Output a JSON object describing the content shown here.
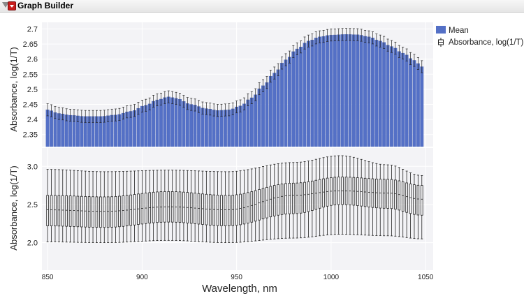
{
  "window": {
    "title": "Graph Builder"
  },
  "legend": {
    "items": [
      {
        "label": "Mean",
        "color": "#5470c6"
      },
      {
        "label": "Absorbance, log(1/T)",
        "symbol": "box-plot-icon"
      }
    ]
  },
  "colors": {
    "bar": "#5470c6",
    "bar_edge": "#3f5ab0",
    "whisker": "#222222",
    "panel_bg": "#f3f3f6",
    "grid": "#ffffff"
  },
  "chart_data": {
    "type": "bar",
    "xlabel": "Wavelength, nm",
    "x_ticks": [
      850,
      900,
      950,
      1000,
      1050
    ],
    "xlim": [
      847,
      1054
    ],
    "x_start": 850,
    "x_step": 2,
    "top_panel": {
      "ylabel": "Absorbance, log(1/T)",
      "ylim": [
        2.31,
        2.722
      ],
      "y_ticks": [
        2.35,
        2.4,
        2.45,
        2.5,
        2.55,
        2.6,
        2.65,
        2.7
      ],
      "series": [
        {
          "name": "Mean",
          "type": "bar"
        }
      ],
      "error_halfwidth": 0.02,
      "mean_anchors": [
        [
          850,
          2.432
        ],
        [
          856,
          2.42
        ],
        [
          862,
          2.414
        ],
        [
          870,
          2.41
        ],
        [
          878,
          2.41
        ],
        [
          886,
          2.415
        ],
        [
          894,
          2.427
        ],
        [
          902,
          2.447
        ],
        [
          908,
          2.465
        ],
        [
          914,
          2.475
        ],
        [
          918,
          2.47
        ],
        [
          926,
          2.45
        ],
        [
          934,
          2.436
        ],
        [
          940,
          2.43
        ],
        [
          946,
          2.432
        ],
        [
          952,
          2.445
        ],
        [
          958,
          2.472
        ],
        [
          964,
          2.512
        ],
        [
          970,
          2.554
        ],
        [
          976,
          2.598
        ],
        [
          982,
          2.634
        ],
        [
          988,
          2.66
        ],
        [
          994,
          2.674
        ],
        [
          1000,
          2.68
        ],
        [
          1008,
          2.682
        ],
        [
          1014,
          2.681
        ],
        [
          1020,
          2.674
        ],
        [
          1026,
          2.66
        ],
        [
          1032,
          2.642
        ],
        [
          1038,
          2.62
        ],
        [
          1044,
          2.596
        ],
        [
          1048,
          2.575
        ]
      ]
    },
    "bottom_panel": {
      "ylabel": "Absorbance, log(1/T)",
      "ylim": [
        1.64,
        3.24
      ],
      "y_ticks": [
        2.0,
        2.5,
        3.0
      ],
      "series": [
        {
          "name": "Absorbance, log(1/T)",
          "type": "box"
        }
      ],
      "box_anchors": [
        {
          "x": 850,
          "min": 2.01,
          "q1": 2.22,
          "median": 2.43,
          "q3": 2.62,
          "max": 2.96
        },
        {
          "x": 880,
          "min": 2.0,
          "q1": 2.2,
          "median": 2.41,
          "q3": 2.6,
          "max": 2.93
        },
        {
          "x": 914,
          "min": 2.03,
          "q1": 2.27,
          "median": 2.47,
          "q3": 2.67,
          "max": 2.95
        },
        {
          "x": 945,
          "min": 2.0,
          "q1": 2.22,
          "median": 2.43,
          "q3": 2.62,
          "max": 2.93
        },
        {
          "x": 980,
          "min": 2.06,
          "q1": 2.38,
          "median": 2.62,
          "q3": 2.78,
          "max": 3.05
        },
        {
          "x": 1005,
          "min": 2.11,
          "q1": 2.5,
          "median": 2.68,
          "q3": 2.86,
          "max": 3.14
        },
        {
          "x": 1030,
          "min": 2.09,
          "q1": 2.45,
          "median": 2.65,
          "q3": 2.83,
          "max": 3.02
        },
        {
          "x": 1048,
          "min": 2.05,
          "q1": 2.36,
          "median": 2.57,
          "q3": 2.75,
          "max": 2.88
        }
      ]
    }
  }
}
